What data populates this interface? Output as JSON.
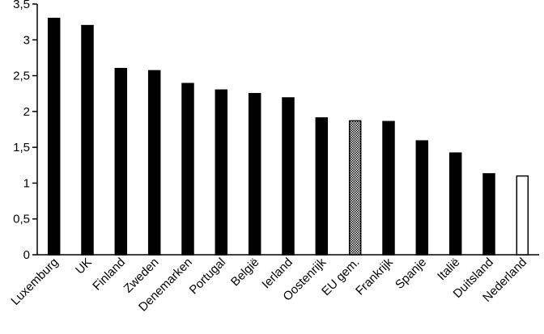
{
  "chart_data": {
    "type": "bar",
    "title": "",
    "xlabel": "",
    "ylabel": "",
    "ylim": [
      0,
      3.5
    ],
    "yticks": [
      0,
      0.5,
      1,
      1.5,
      2,
      2.5,
      3,
      3.5
    ],
    "ytick_labels": [
      "0",
      "0,5",
      "1",
      "1,5",
      "2",
      "2,5",
      "3",
      "3,5"
    ],
    "grid": false,
    "categories": [
      "Luxemburg",
      "UK",
      "Finland",
      "Zweden",
      "Denemarken",
      "Portugal",
      "België",
      "Ierland",
      "Oostenrijk",
      "EU gem.",
      "Frankrijk",
      "Spanje",
      "Italië",
      "Duitsland",
      "Nederland"
    ],
    "values": [
      3.3,
      3.2,
      2.6,
      2.57,
      2.39,
      2.3,
      2.25,
      2.19,
      1.91,
      1.87,
      1.86,
      1.59,
      1.42,
      1.13,
      1.1
    ],
    "bar_styles": [
      "solid",
      "solid",
      "solid",
      "solid",
      "solid",
      "solid",
      "solid",
      "solid",
      "solid",
      "checkered",
      "solid",
      "solid",
      "solid",
      "solid",
      "hollow"
    ],
    "colors": {
      "bar": "#000000",
      "highlight_fill": "#ffffff",
      "axis": "#000000"
    }
  }
}
